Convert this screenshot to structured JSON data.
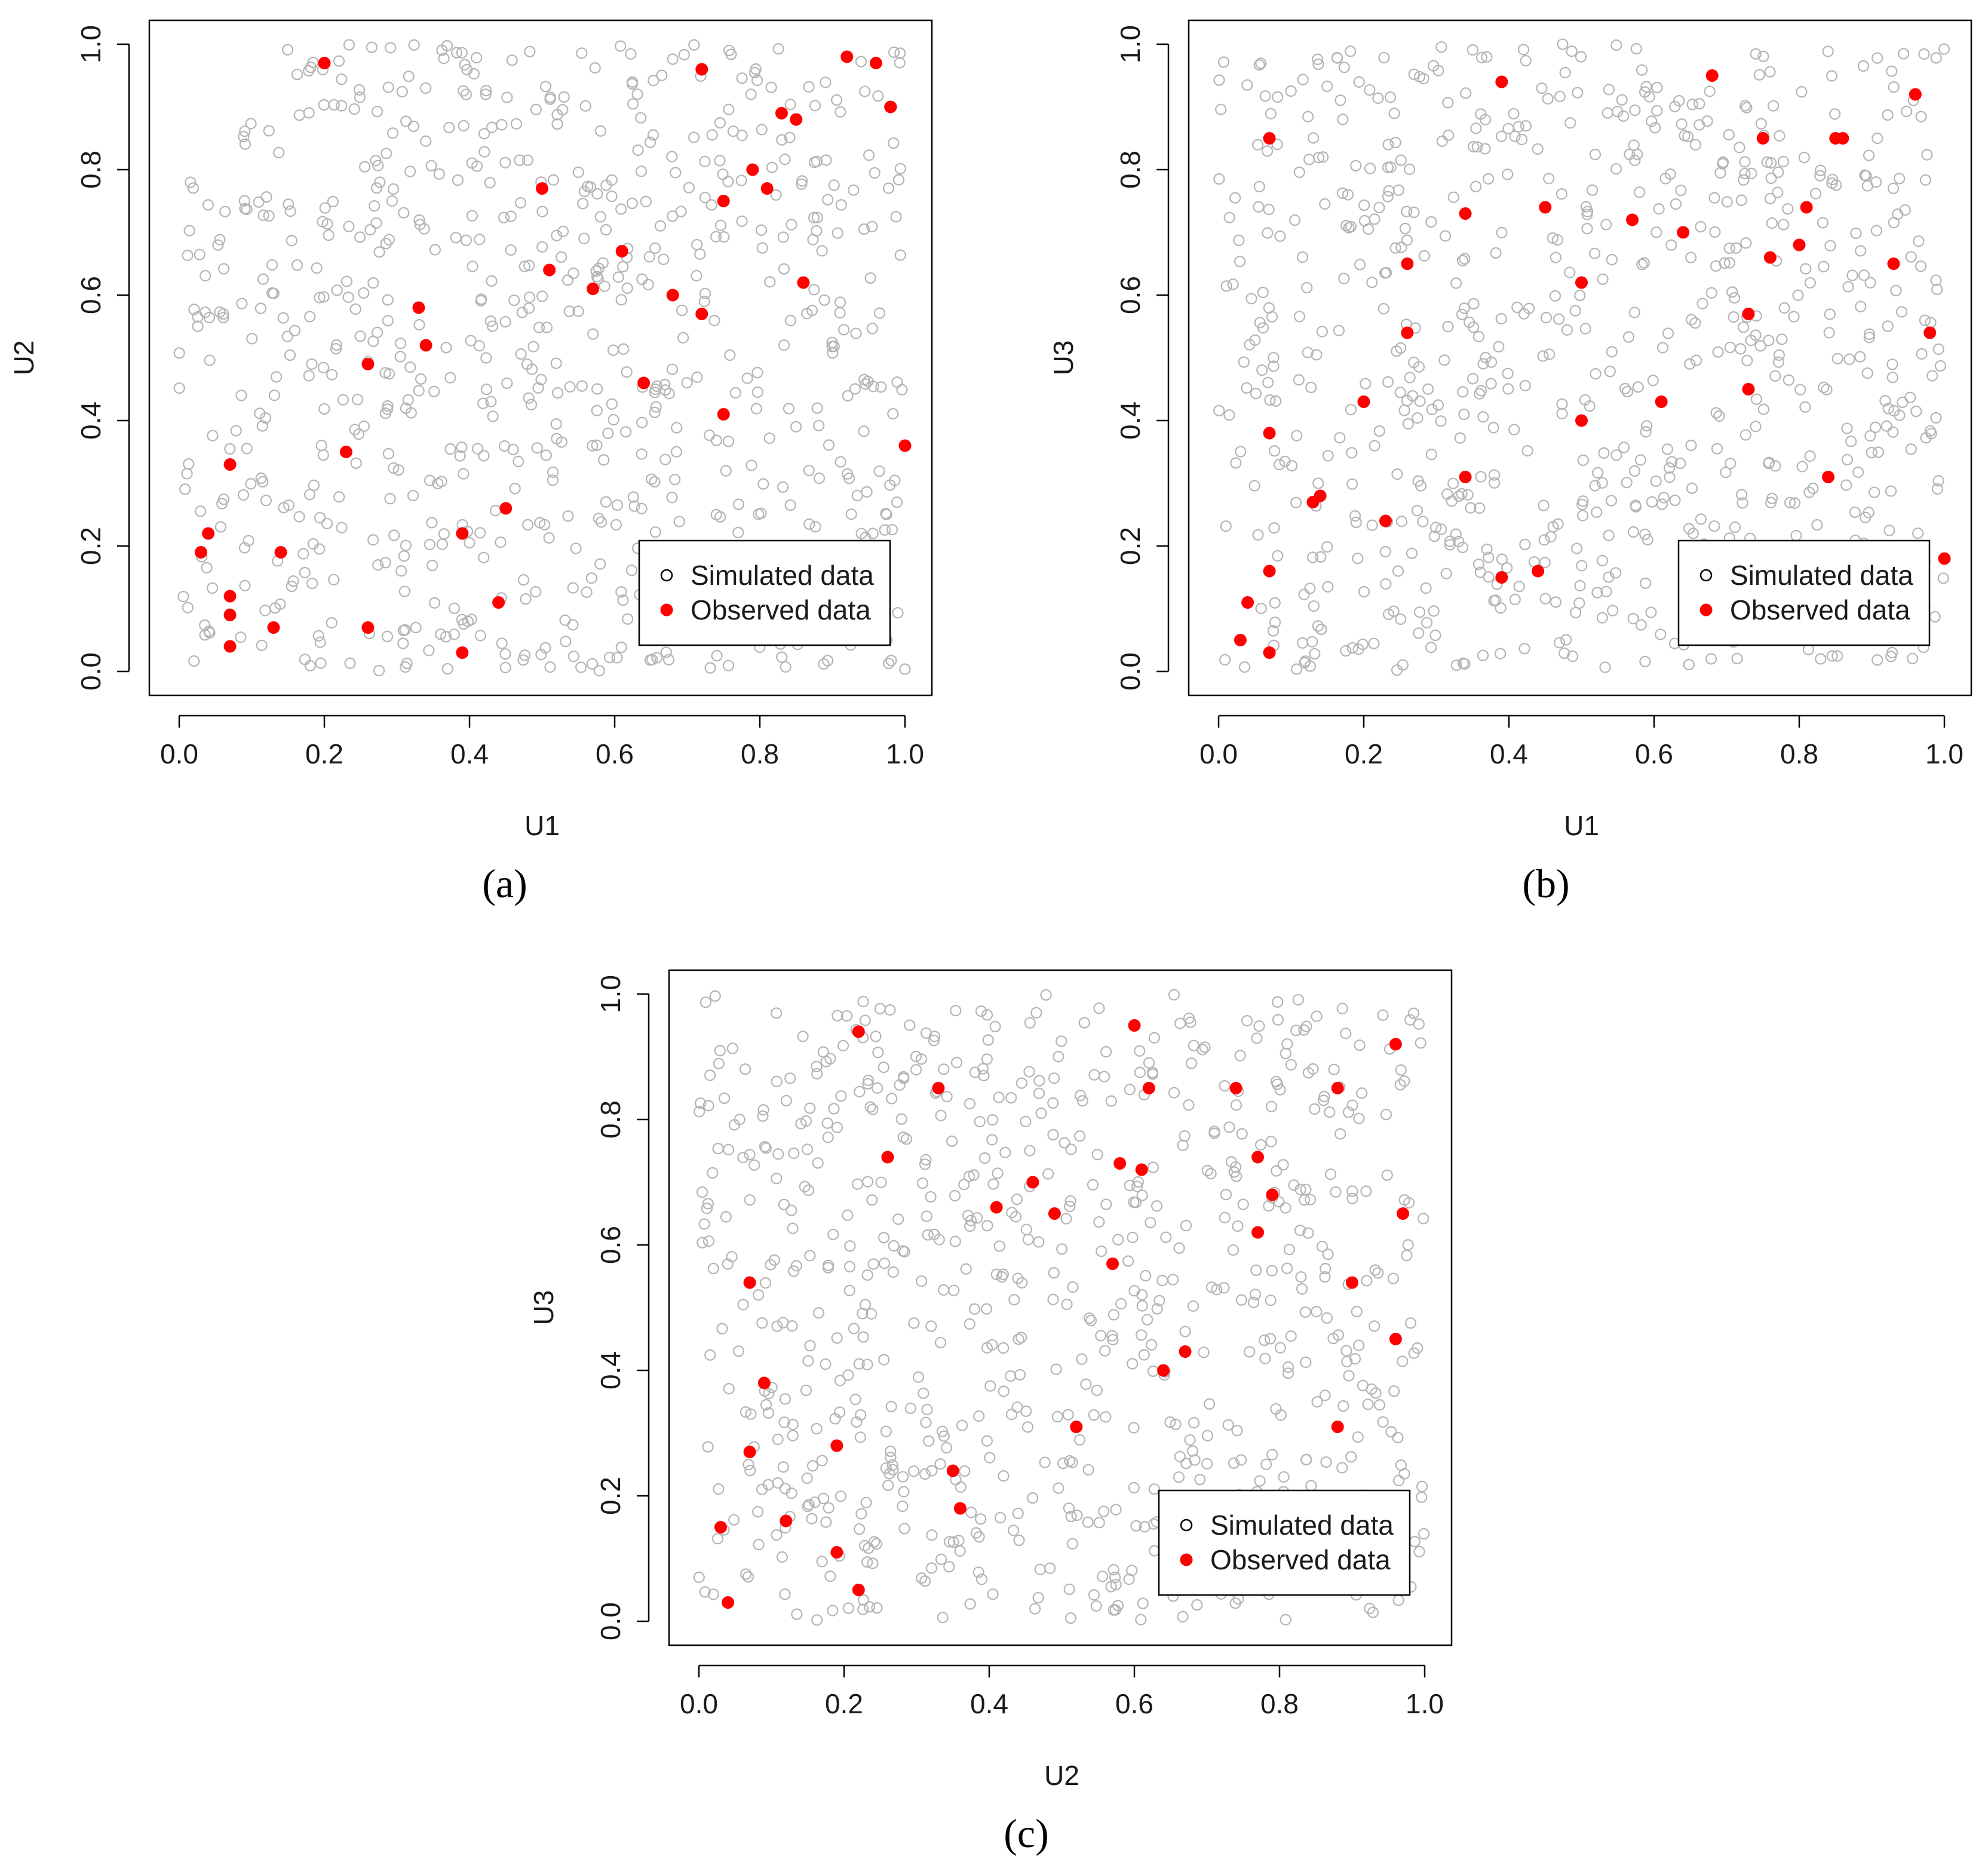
{
  "panel_labels": [
    "(a)",
    "(b)",
    "(c)"
  ],
  "chart_data": [
    {
      "type": "scatter",
      "panel": "(a)",
      "xlabel": "U1",
      "ylabel": "U2",
      "xlim": [
        0,
        1
      ],
      "ylim": [
        0,
        1
      ],
      "x_ticks": [
        "0.0",
        "0.2",
        "0.4",
        "0.6",
        "0.8",
        "1.0"
      ],
      "y_ticks": [
        "0.0",
        "0.2",
        "0.4",
        "0.6",
        "0.8",
        "1.0"
      ],
      "legend": {
        "position": "bottom-right",
        "entries": [
          "Simulated data",
          "Observed data"
        ]
      },
      "series": [
        {
          "name": "Simulated data",
          "marker": "open-circle",
          "color": "#b5b5b5",
          "simulated_uniform_count": 750
        },
        {
          "name": "Observed data",
          "marker": "filled-circle",
          "color": "#ff0000",
          "x": [
            0.2,
            0.92,
            0.96,
            0.72,
            0.98,
            0.83,
            0.85,
            0.5,
            0.79,
            0.81,
            0.75,
            0.61,
            0.51,
            0.86,
            0.57,
            0.33,
            0.72,
            0.26,
            0.68,
            0.34,
            0.64,
            0.75,
            0.07,
            0.23,
            1.0,
            0.45,
            0.04,
            0.39,
            0.14,
            0.03,
            0.44,
            0.07,
            0.07,
            0.13,
            0.26,
            0.07,
            0.39
          ],
          "y": [
            0.97,
            0.98,
            0.97,
            0.96,
            0.9,
            0.89,
            0.88,
            0.77,
            0.8,
            0.77,
            0.75,
            0.67,
            0.64,
            0.62,
            0.61,
            0.58,
            0.57,
            0.49,
            0.6,
            0.52,
            0.46,
            0.41,
            0.33,
            0.35,
            0.36,
            0.26,
            0.22,
            0.22,
            0.19,
            0.19,
            0.11,
            0.12,
            0.09,
            0.07,
            0.07,
            0.04,
            0.03
          ]
        }
      ]
    },
    {
      "type": "scatter",
      "panel": "(b)",
      "xlabel": "U1",
      "ylabel": "U3",
      "xlim": [
        0,
        1
      ],
      "ylim": [
        0,
        1
      ],
      "x_ticks": [
        "0.0",
        "0.2",
        "0.4",
        "0.6",
        "0.8",
        "1.0"
      ],
      "y_ticks": [
        "0.0",
        "0.2",
        "0.4",
        "0.6",
        "0.8",
        "1.0"
      ],
      "legend": {
        "position": "bottom-right",
        "entries": [
          "Simulated data",
          "Observed data"
        ]
      },
      "series": [
        {
          "name": "Simulated data",
          "marker": "open-circle",
          "color": "#b5b5b5",
          "simulated_uniform_count": 750
        },
        {
          "name": "Observed data",
          "marker": "filled-circle",
          "color": "#ff0000",
          "x": [
            0.68,
            0.39,
            0.96,
            0.07,
            0.75,
            0.85,
            0.86,
            0.34,
            0.45,
            0.57,
            0.64,
            0.81,
            0.76,
            0.8,
            0.26,
            0.5,
            0.93,
            0.73,
            0.98,
            0.26,
            0.2,
            0.73,
            0.61,
            0.5,
            0.07,
            0.34,
            0.14,
            0.13,
            0.84,
            0.23,
            1.0,
            0.07,
            0.39,
            0.44,
            0.04,
            0.03,
            0.07
          ],
          "y": [
            0.95,
            0.94,
            0.92,
            0.85,
            0.85,
            0.85,
            0.85,
            0.73,
            0.74,
            0.72,
            0.7,
            0.74,
            0.66,
            0.68,
            0.65,
            0.62,
            0.65,
            0.57,
            0.54,
            0.54,
            0.43,
            0.45,
            0.43,
            0.4,
            0.38,
            0.31,
            0.28,
            0.27,
            0.31,
            0.24,
            0.18,
            0.16,
            0.15,
            0.16,
            0.11,
            0.05,
            0.03
          ]
        }
      ]
    },
    {
      "type": "scatter",
      "panel": "(c)",
      "xlabel": "U2",
      "ylabel": "U3",
      "xlim": [
        0,
        1
      ],
      "ylim": [
        0,
        1
      ],
      "x_ticks": [
        "0.0",
        "0.2",
        "0.4",
        "0.6",
        "0.8",
        "1.0"
      ],
      "y_ticks": [
        "0.0",
        "0.2",
        "0.4",
        "0.6",
        "0.8",
        "1.0"
      ],
      "legend": {
        "position": "bottom-right",
        "entries": [
          "Simulated data",
          "Observed data"
        ]
      },
      "series": [
        {
          "name": "Simulated data",
          "marker": "open-circle",
          "color": "#b5b5b5",
          "simulated_uniform_count": 750
        },
        {
          "name": "Observed data",
          "marker": "filled-circle",
          "color": "#ff0000",
          "x": [
            0.6,
            0.22,
            0.96,
            0.33,
            0.62,
            0.74,
            0.88,
            0.26,
            0.58,
            0.77,
            0.61,
            0.46,
            0.41,
            0.79,
            0.49,
            0.97,
            0.77,
            0.57,
            0.07,
            0.9,
            0.96,
            0.67,
            0.64,
            0.09,
            0.52,
            0.88,
            0.19,
            0.07,
            0.35,
            0.36,
            0.12,
            0.03,
            0.19,
            0.22,
            0.04
          ],
          "y": [
            0.95,
            0.94,
            0.92,
            0.85,
            0.85,
            0.85,
            0.85,
            0.74,
            0.73,
            0.74,
            0.72,
            0.7,
            0.66,
            0.68,
            0.65,
            0.65,
            0.62,
            0.57,
            0.54,
            0.54,
            0.45,
            0.43,
            0.4,
            0.38,
            0.31,
            0.31,
            0.28,
            0.27,
            0.24,
            0.18,
            0.16,
            0.15,
            0.11,
            0.05,
            0.03
          ]
        }
      ]
    }
  ]
}
